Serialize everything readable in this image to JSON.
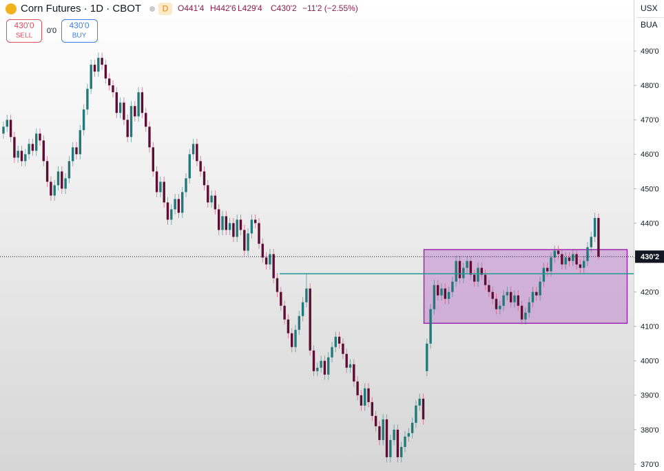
{
  "header": {
    "symbol": "Corn Futures · 1D · CBOT",
    "badge": "D",
    "open": "O441'4",
    "high": "H442'6",
    "low": "L429'4",
    "close": "C430'2",
    "change": "−11'2 (−2.55%)"
  },
  "trade": {
    "sell_price": "430'0",
    "sell": "SELL",
    "spread": "0'0",
    "buy_price": "430'0",
    "buy": "BUY"
  },
  "scale": {
    "currency": "USX",
    "unit": "BUA"
  },
  "chart_data": {
    "type": "candlestick",
    "up_color": "#22787a",
    "down_color": "#5c0f33",
    "ylim": [
      368,
      504.8
    ],
    "yticks": [
      {
        "value": 370,
        "label": "370'0"
      },
      {
        "value": 380,
        "label": "380'0"
      },
      {
        "value": 390,
        "label": "390'0"
      },
      {
        "value": 400,
        "label": "400'0"
      },
      {
        "value": 410,
        "label": "410'0"
      },
      {
        "value": 420,
        "label": "420'0"
      },
      {
        "value": 430,
        "label": "430'0"
      },
      {
        "value": 440,
        "label": "440'0"
      },
      {
        "value": 450,
        "label": "450'0"
      },
      {
        "value": 460,
        "label": "460'0"
      },
      {
        "value": 470,
        "label": "470'0"
      },
      {
        "value": 480,
        "label": "480'0"
      },
      {
        "value": 490,
        "label": "490'0"
      }
    ],
    "last_price": {
      "value": 430.25,
      "label": "430'2"
    },
    "zone": [
      410.9,
      432.3
    ],
    "zone_color": "#9c27b0",
    "level": 425.3,
    "level_color": "#1f9a94",
    "open": [
      466,
      468,
      470,
      465,
      459,
      461,
      458,
      460,
      463,
      461,
      466,
      464,
      458,
      452,
      448,
      451,
      455,
      450,
      453,
      458,
      462,
      460,
      467,
      473,
      479,
      486,
      484,
      488,
      486,
      482,
      480,
      478,
      472,
      475,
      470,
      465,
      474,
      471,
      478,
      472,
      468,
      462,
      455,
      449,
      452,
      446,
      441,
      444,
      447,
      443,
      449,
      453,
      460,
      463,
      458,
      455,
      451,
      446,
      448,
      444,
      438,
      442,
      438,
      440,
      436,
      441,
      438,
      432,
      437,
      441,
      440,
      434,
      430,
      428,
      431,
      424,
      420,
      416,
      412,
      408,
      404,
      409,
      413,
      417,
      421,
      403,
      397,
      398,
      400,
      396,
      401,
      404,
      407,
      405,
      402,
      398,
      399,
      394,
      390,
      387,
      392,
      388,
      384,
      381,
      377,
      383,
      372,
      377,
      380,
      372,
      375,
      378,
      379,
      382,
      387,
      389,
      397,
      405,
      415,
      422,
      419,
      421,
      418,
      420,
      423,
      429,
      424,
      427,
      429,
      425,
      423,
      427,
      425,
      422,
      420,
      418,
      415,
      416,
      419,
      420,
      417,
      419,
      416,
      412,
      414,
      417,
      420,
      419,
      423,
      427,
      426,
      430,
      432,
      431,
      428,
      430,
      429,
      431,
      428,
      427,
      429,
      433,
      436,
      441.5
    ],
    "high": [
      469.5,
      471.5,
      471.5,
      466.5,
      462.5,
      462.5,
      461.5,
      464.5,
      464.5,
      467.5,
      467.5,
      465.5,
      459.5,
      453.5,
      452.5,
      456.5,
      456.5,
      454.5,
      459.5,
      463.5,
      463.5,
      468.5,
      474.5,
      480.5,
      487.5,
      487.5,
      489.5,
      489.5,
      487.5,
      483.5,
      481.5,
      479.5,
      476.5,
      476.5,
      471.5,
      475.5,
      475.5,
      479.5,
      479.5,
      473.5,
      469.5,
      463.5,
      456.5,
      453.5,
      453.5,
      447.5,
      445.5,
      448.5,
      448.5,
      450.5,
      454.5,
      461.5,
      464.5,
      464.5,
      459.5,
      456.5,
      452.5,
      449.5,
      449.5,
      445.5,
      443.5,
      443.5,
      441.5,
      441.5,
      442.5,
      442.5,
      439.5,
      438.5,
      442.5,
      442.5,
      441.5,
      435.5,
      431.5,
      432.5,
      432.5,
      425.5,
      421.5,
      417.5,
      413.5,
      409.5,
      410.5,
      414.5,
      418.5,
      425.5,
      422.5,
      404.5,
      399.5,
      401.5,
      401.5,
      402.5,
      405.5,
      408.5,
      408.5,
      406.5,
      403.5,
      400.5,
      400.5,
      395.5,
      391.5,
      393.5,
      393.5,
      389.5,
      385.5,
      382.5,
      384.5,
      384.5,
      378.5,
      381.5,
      381.5,
      376.5,
      379.5,
      380.5,
      383.5,
      388.5,
      390.5,
      390.5,
      406.5,
      416.5,
      423.5,
      423.5,
      422.5,
      422.5,
      421.5,
      424.5,
      430.5,
      430.5,
      428.5,
      430.5,
      430.5,
      426.5,
      428.5,
      428.5,
      426.5,
      423.5,
      421.5,
      419.5,
      417.5,
      420.5,
      421.5,
      421.5,
      420.5,
      420.5,
      417.5,
      415.5,
      418.5,
      421.5,
      421.5,
      424.5,
      428.5,
      428.5,
      431.5,
      433.5,
      433.5,
      432.5,
      431.5,
      431.5,
      432.5,
      432.5,
      429.5,
      430.5,
      434.5,
      437.5,
      443,
      442.75
    ],
    "low": [
      464.5,
      466.5,
      463.5,
      457.5,
      457.5,
      456.5,
      456.5,
      458.5,
      459.5,
      459.5,
      462.5,
      456.5,
      450.5,
      446.5,
      446.5,
      449.5,
      448.5,
      448.5,
      451.5,
      456.5,
      458.5,
      458.5,
      465.5,
      471.5,
      477.5,
      482.5,
      482.5,
      484.5,
      480.5,
      478.5,
      476.5,
      470.5,
      470.5,
      468.5,
      463.5,
      463.5,
      469.5,
      469.5,
      470.5,
      466.5,
      460.5,
      453.5,
      447.5,
      447.5,
      444.5,
      439.5,
      439.5,
      442.5,
      441.5,
      441.5,
      447.5,
      451.5,
      458.5,
      456.5,
      453.5,
      449.5,
      444.5,
      444.5,
      442.5,
      436.5,
      436.5,
      436.5,
      436.5,
      434.5,
      434.5,
      436.5,
      430.5,
      430.5,
      435.5,
      438.5,
      432.5,
      428.5,
      426.5,
      426.5,
      422.5,
      418.5,
      414.5,
      410.5,
      406.5,
      402.5,
      402.5,
      407.5,
      411.5,
      415.5,
      401.5,
      395.5,
      395.5,
      396.5,
      394.5,
      394.5,
      399.5,
      402.5,
      403.5,
      400.5,
      396.5,
      396.5,
      392.5,
      388.5,
      385.5,
      385.5,
      386.5,
      382.5,
      379.5,
      375.5,
      375.5,
      370.5,
      370.5,
      375.5,
      370.5,
      370.5,
      373.5,
      376.5,
      377.5,
      380.5,
      385.5,
      381.5,
      395.5,
      403.5,
      413.5,
      417.5,
      417.5,
      416.5,
      416.5,
      418.5,
      421.5,
      422.5,
      422.5,
      425.5,
      423.5,
      421.5,
      421.5,
      423.5,
      420.5,
      418.5,
      416.5,
      413.5,
      413.5,
      414.5,
      417.5,
      415.5,
      415.5,
      414.5,
      410.5,
      410.5,
      412.5,
      415.5,
      417.5,
      417.5,
      421.5,
      424.5,
      424.5,
      428.5,
      429.5,
      426.5,
      426.5,
      427.5,
      427.5,
      426.5,
      425.5,
      425.5,
      427.5,
      431.5,
      434.5,
      429.5
    ],
    "close": [
      468,
      470,
      465,
      459,
      461,
      458,
      460,
      463,
      461,
      466,
      464,
      458,
      452,
      448,
      451,
      455,
      450,
      453,
      458,
      462,
      460,
      467,
      473,
      479,
      486,
      484,
      488,
      486,
      482,
      480,
      478,
      472,
      475,
      470,
      465,
      474,
      471,
      478,
      472,
      468,
      462,
      455,
      449,
      452,
      446,
      441,
      444,
      447,
      443,
      449,
      453,
      460,
      463,
      458,
      455,
      451,
      446,
      448,
      444,
      438,
      442,
      438,
      440,
      436,
      441,
      438,
      432,
      437,
      441,
      440,
      434,
      430,
      428,
      431,
      424,
      420,
      416,
      412,
      408,
      404,
      409,
      413,
      417,
      421,
      403,
      397,
      398,
      400,
      396,
      401,
      404,
      407,
      405,
      402,
      398,
      399,
      394,
      390,
      387,
      392,
      388,
      384,
      381,
      377,
      383,
      372,
      377,
      380,
      372,
      375,
      378,
      379,
      382,
      387,
      389,
      383,
      405,
      415,
      422,
      419,
      421,
      418,
      420,
      423,
      429,
      424,
      427,
      429,
      425,
      423,
      427,
      425,
      422,
      420,
      418,
      415,
      416,
      419,
      420,
      417,
      419,
      416,
      412,
      414,
      417,
      420,
      419,
      423,
      427,
      426,
      430,
      432,
      431,
      428,
      430,
      429,
      431,
      428,
      427,
      429,
      433,
      436,
      441.5,
      430.25
    ]
  }
}
